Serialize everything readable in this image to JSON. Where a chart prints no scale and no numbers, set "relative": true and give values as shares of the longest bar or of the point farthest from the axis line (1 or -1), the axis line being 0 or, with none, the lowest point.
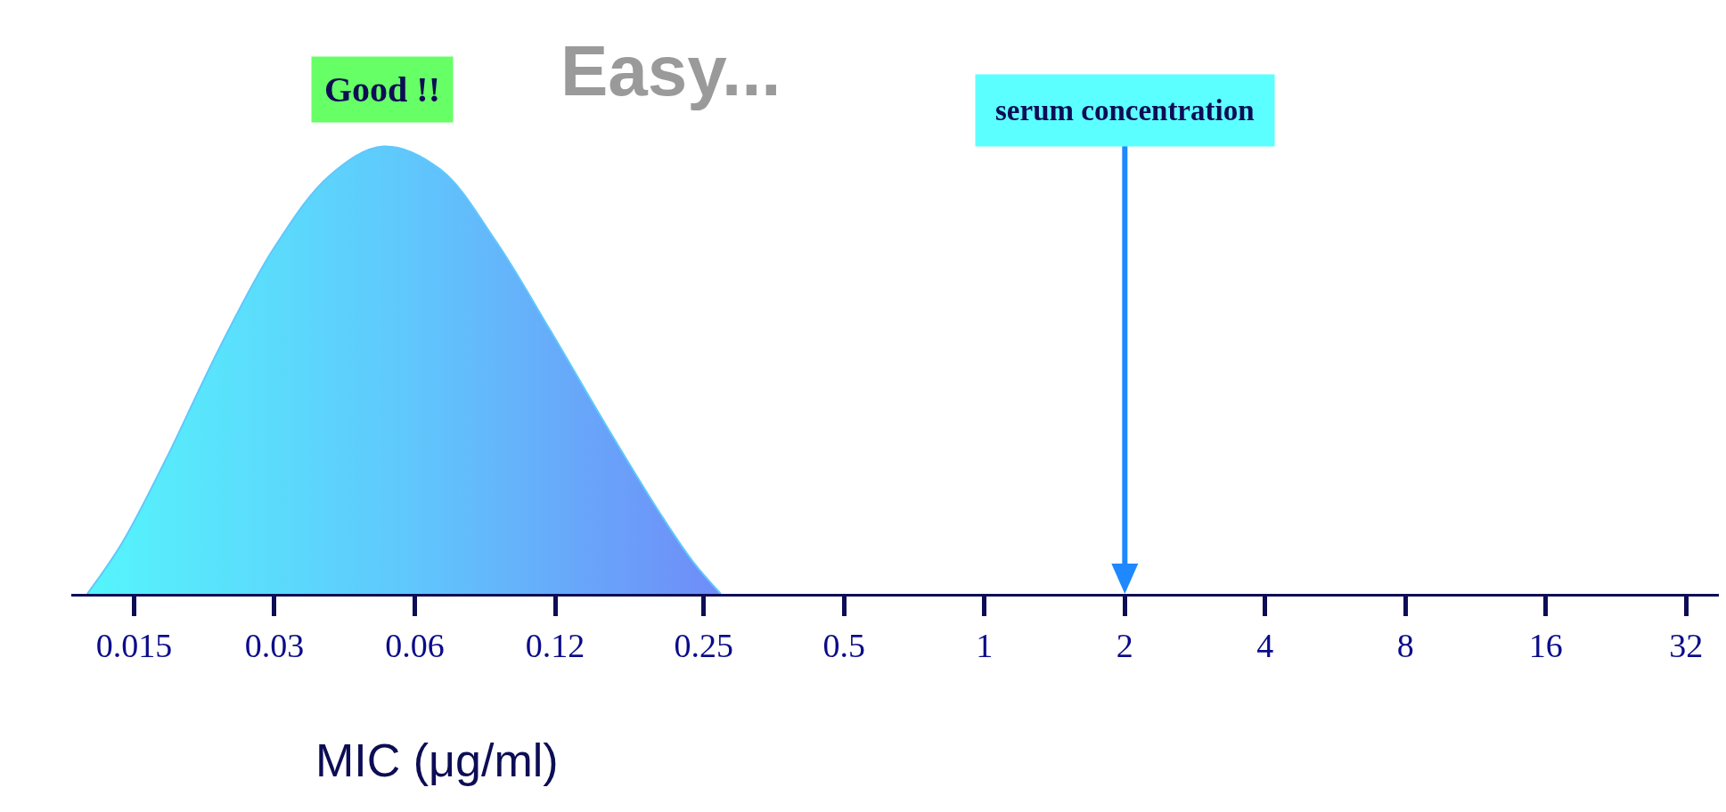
{
  "chart_data": {
    "type": "area",
    "relative": true,
    "log": "x",
    "xlabel": "MIC (μg/ml)",
    "x": [
      0.0119,
      0.0141,
      0.0175,
      0.0229,
      0.0301,
      0.0395,
      0.0513,
      0.068,
      0.0893,
      0.117,
      0.154,
      0.202,
      0.237,
      0.272
    ],
    "series": [
      {
        "color": "#5fc8fc",
        "values": [
          0,
          0.112,
          0.298,
          0.551,
          0.777,
          0.936,
          1,
          0.949,
          0.79,
          0.59,
          0.378,
          0.178,
          0.072,
          0
        ]
      }
    ],
    "xlim": [
      0.011,
      37.6
    ],
    "xticks": [
      0.015,
      0.03,
      0.06,
      0.12,
      0.25,
      0.5,
      1,
      2,
      4,
      8,
      16,
      32
    ],
    "annotations": [
      "Good !!",
      "Easy..."
    ],
    "ref_lines": [
      {
        "axis": "x",
        "value": 2,
        "label": "serum concentration",
        "color": "#1e88ff"
      }
    ],
    "line_style": "solid"
  }
}
